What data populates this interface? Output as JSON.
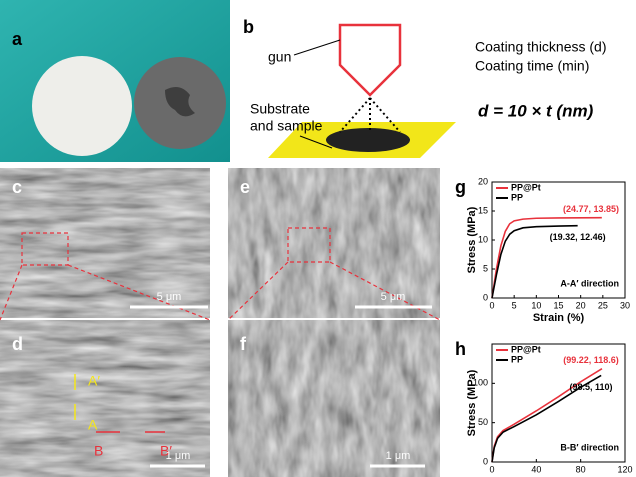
{
  "panels": {
    "a": {
      "label": "a"
    },
    "b": {
      "label": "b",
      "gun": "gun",
      "substrate": [
        "Substrate",
        "and sample"
      ],
      "notes": [
        "Coating thickness (d)",
        "Coating time (min)"
      ],
      "equation": "d = 10 × t (nm)"
    },
    "c": {
      "label": "c",
      "scale": "5 μm"
    },
    "e": {
      "label": "e",
      "scale": "5 μm"
    },
    "d": {
      "label": "d",
      "scale": "1 μm",
      "marks": [
        "A′",
        "A",
        "B",
        "B′"
      ]
    },
    "f": {
      "label": "f",
      "scale": "1 μm"
    }
  },
  "chart_data": [
    {
      "type": "line",
      "label": "g",
      "xlabel": "Strain (%)",
      "ylabel": "Stress (MPa)",
      "xlim": [
        0,
        30
      ],
      "xticks": [
        0,
        5,
        10,
        15,
        20,
        25,
        30
      ],
      "ylim": [
        0,
        20
      ],
      "yticks": [
        0,
        5,
        10,
        15,
        20
      ],
      "series": [
        {
          "name": "PP@Pt",
          "color": "#e8323c",
          "x": [
            0,
            1,
            2,
            3,
            4,
            5,
            7,
            10,
            15,
            20,
            24.77
          ],
          "values": [
            0,
            5,
            9,
            11.5,
            12.8,
            13.3,
            13.6,
            13.75,
            13.8,
            13.83,
            13.85
          ]
        },
        {
          "name": "PP",
          "color": "#000000",
          "x": [
            0,
            1,
            2,
            3,
            4,
            5,
            7,
            10,
            15,
            19.32
          ],
          "values": [
            0,
            4,
            7.5,
            9.8,
            11,
            11.6,
            12.1,
            12.3,
            12.4,
            12.46
          ]
        }
      ],
      "annotations": [
        "(24.77, 13.85)",
        "(19.32, 12.46)"
      ],
      "direction": "A-A′ direction"
    },
    {
      "type": "line",
      "label": "h",
      "xlabel": "Strain (%)",
      "ylabel": "Stress (MPa)",
      "xlim": [
        0,
        120
      ],
      "xticks": [
        0,
        40,
        80,
        120
      ],
      "ylim": [
        0,
        150
      ],
      "yticks": [
        0,
        50,
        100
      ],
      "series": [
        {
          "name": "PP@Pt",
          "color": "#e8323c",
          "x": [
            0,
            2,
            5,
            10,
            20,
            40,
            60,
            80,
            99.22
          ],
          "values": [
            0,
            20,
            32,
            40,
            48,
            65,
            83,
            102,
            118.6
          ]
        },
        {
          "name": "PP",
          "color": "#000000",
          "x": [
            0,
            2,
            5,
            10,
            20,
            40,
            60,
            80,
            98.5
          ],
          "values": [
            0,
            18,
            30,
            38,
            45,
            60,
            77,
            95,
            110
          ]
        }
      ],
      "annotations": [
        "(99.22, 118.6)",
        "(98.5, 110)"
      ],
      "direction": "B-B′ direction"
    }
  ]
}
